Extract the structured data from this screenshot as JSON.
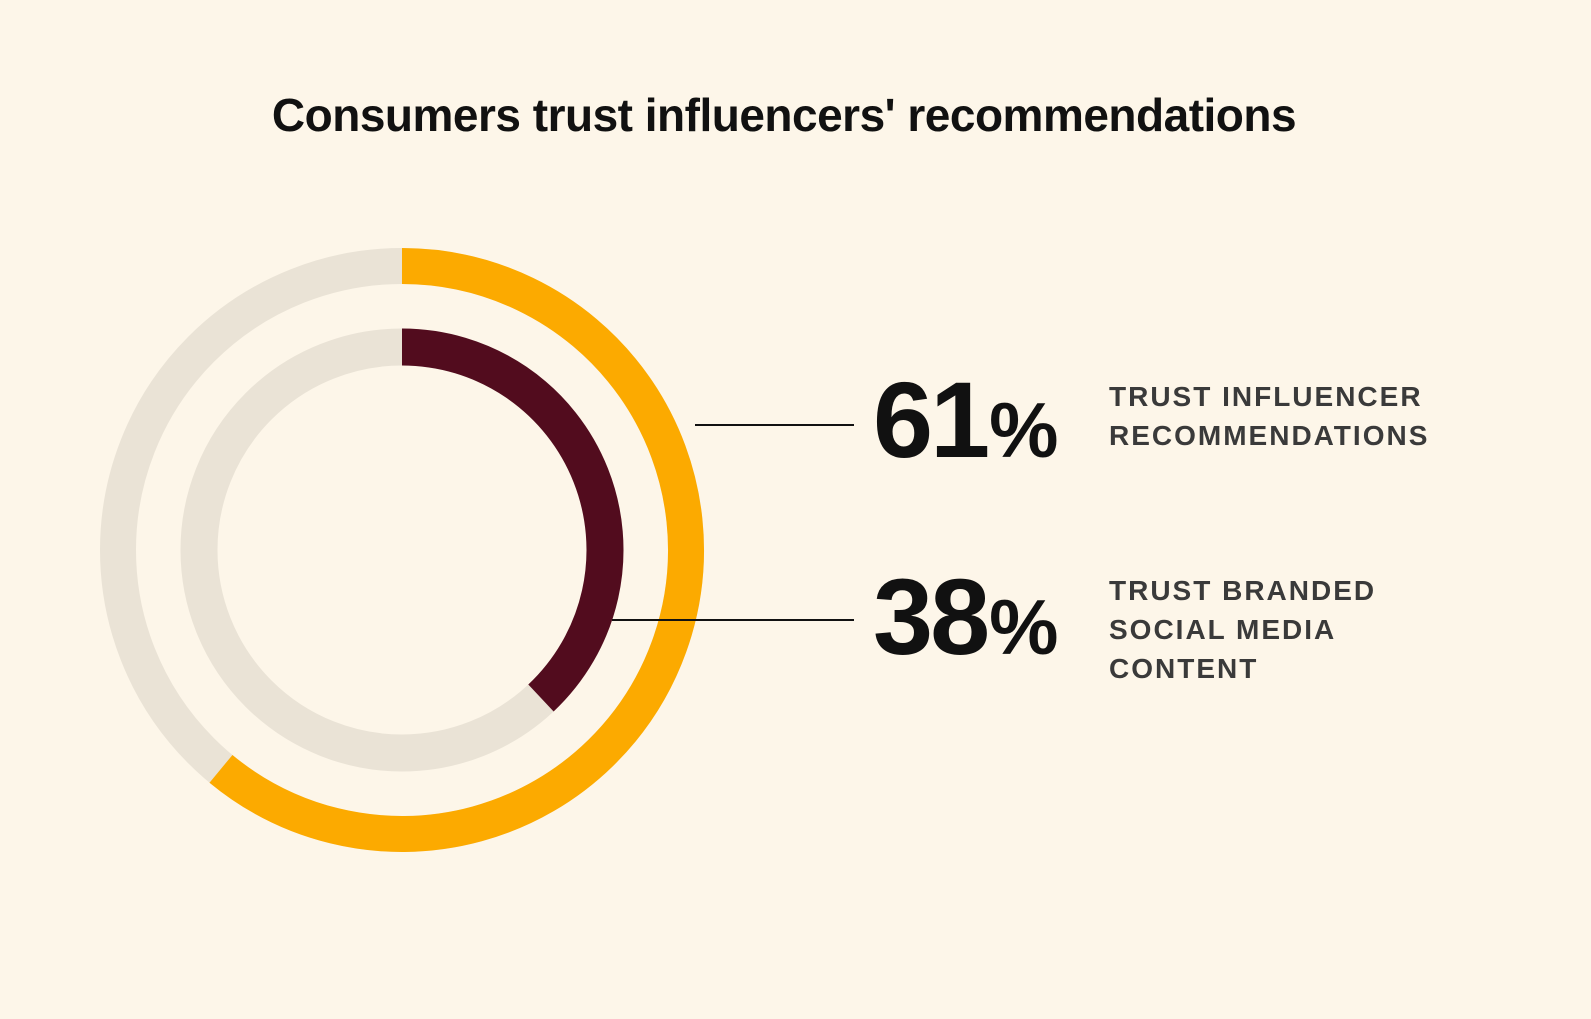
{
  "chart_data": {
    "type": "pie",
    "title": "Consumers trust influencers' recommendations",
    "series": [
      {
        "value": 61,
        "value_label": "61",
        "unit": "%",
        "label_lines": [
          "TRUST INFLUENCER",
          "RECOMMENDATIONS"
        ],
        "color": "#FCAA00"
      },
      {
        "value": 38,
        "value_label": "38",
        "unit": "%",
        "label_lines": [
          "TRUST BRANDED",
          "SOCIAL MEDIA",
          "CONTENT"
        ],
        "color": "#520C1E"
      }
    ],
    "track_color": "#EAE3D6",
    "max": 100
  }
}
